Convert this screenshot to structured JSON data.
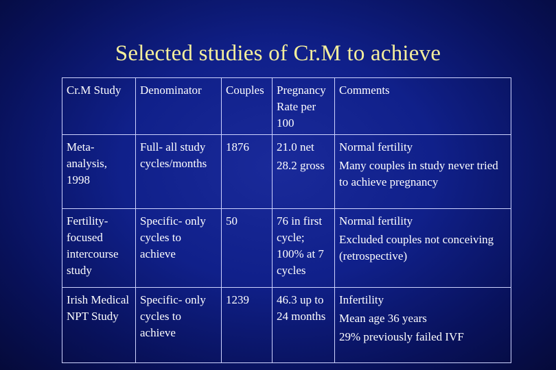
{
  "title": "Selected studies of Cr.M to achieve",
  "table": {
    "headers": [
      "Cr.M Study",
      "Denominator",
      "Couples",
      "Pregnancy Rate per 100",
      "Comments"
    ],
    "rows": [
      {
        "study": "Meta-analysis, 1998",
        "denominator": "Full- all study cycles/months",
        "couples": "1876",
        "rate": [
          "21.0 net",
          "28.2 gross"
        ],
        "comments": [
          "Normal fertility",
          "Many couples in study never tried to achieve pregnancy"
        ]
      },
      {
        "study": "Fertility-focused intercourse study",
        "denominator": "Specific- only cycles to achieve",
        "couples": "50",
        "rate": [
          "76 in first cycle; 100% at 7 cycles"
        ],
        "comments": [
          "Normal fertility",
          "Excluded couples not conceiving (retrospective)"
        ]
      },
      {
        "study": "Irish Medical NPT Study",
        "denominator": "Specific- only cycles to achieve",
        "couples": "1239",
        "rate": [
          "46.3 up to 24 months"
        ],
        "comments": [
          "Infertility",
          "Mean age 36 years",
          "29% previously failed IVF"
        ]
      }
    ]
  }
}
